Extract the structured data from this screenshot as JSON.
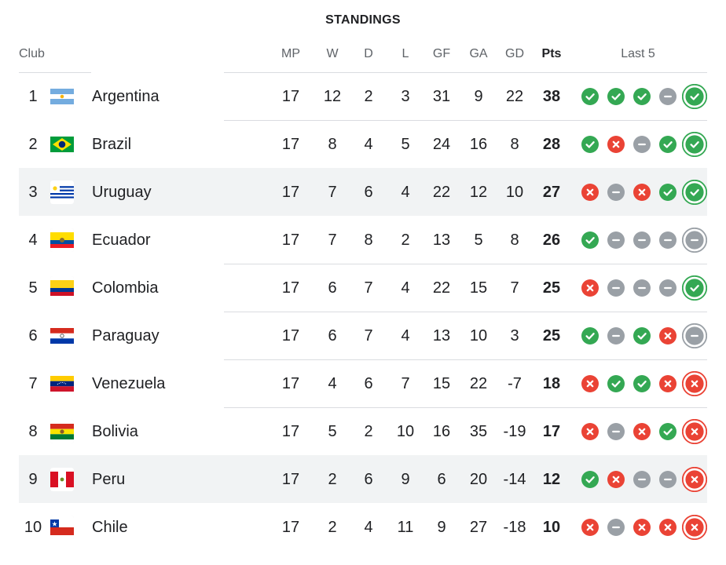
{
  "title": "STANDINGS",
  "columns": {
    "club": "Club",
    "mp": "MP",
    "w": "W",
    "d": "D",
    "l": "L",
    "gf": "GF",
    "ga": "GA",
    "gd": "GD",
    "pts": "Pts",
    "last5": "Last 5"
  },
  "colors": {
    "win": "#34a853",
    "loss": "#ea4335",
    "draw": "#9aa0a6",
    "divider": "#dadce0",
    "highlight_row": "#f1f3f4"
  },
  "rows": [
    {
      "rank": "1",
      "club": "Argentina",
      "flag": "argentina-flag-icon",
      "mp": "17",
      "w": "12",
      "d": "2",
      "l": "3",
      "gf": "31",
      "ga": "9",
      "gd": "22",
      "pts": "38",
      "last5": [
        "W",
        "W",
        "W",
        "D",
        "W"
      ],
      "highlight": false
    },
    {
      "rank": "2",
      "club": "Brazil",
      "flag": "brazil-flag-icon",
      "mp": "17",
      "w": "8",
      "d": "4",
      "l": "5",
      "gf": "24",
      "ga": "16",
      "gd": "8",
      "pts": "28",
      "last5": [
        "W",
        "L",
        "D",
        "W",
        "W"
      ],
      "highlight": false
    },
    {
      "rank": "3",
      "club": "Uruguay",
      "flag": "uruguay-flag-icon",
      "mp": "17",
      "w": "7",
      "d": "6",
      "l": "4",
      "gf": "22",
      "ga": "12",
      "gd": "10",
      "pts": "27",
      "last5": [
        "L",
        "D",
        "L",
        "W",
        "W"
      ],
      "highlight": true
    },
    {
      "rank": "4",
      "club": "Ecuador",
      "flag": "ecuador-flag-icon",
      "mp": "17",
      "w": "7",
      "d": "8",
      "l": "2",
      "gf": "13",
      "ga": "5",
      "gd": "8",
      "pts": "26",
      "last5": [
        "W",
        "D",
        "D",
        "D",
        "D"
      ],
      "highlight": false
    },
    {
      "rank": "5",
      "club": "Colombia",
      "flag": "colombia-flag-icon",
      "mp": "17",
      "w": "6",
      "d": "7",
      "l": "4",
      "gf": "22",
      "ga": "15",
      "gd": "7",
      "pts": "25",
      "last5": [
        "L",
        "D",
        "D",
        "D",
        "W"
      ],
      "highlight": false
    },
    {
      "rank": "6",
      "club": "Paraguay",
      "flag": "paraguay-flag-icon",
      "mp": "17",
      "w": "6",
      "d": "7",
      "l": "4",
      "gf": "13",
      "ga": "10",
      "gd": "3",
      "pts": "25",
      "last5": [
        "W",
        "D",
        "W",
        "L",
        "D"
      ],
      "highlight": false
    },
    {
      "rank": "7",
      "club": "Venezuela",
      "flag": "venezuela-flag-icon",
      "mp": "17",
      "w": "4",
      "d": "6",
      "l": "7",
      "gf": "15",
      "ga": "22",
      "gd": "-7",
      "pts": "18",
      "last5": [
        "L",
        "W",
        "W",
        "L",
        "L"
      ],
      "highlight": false
    },
    {
      "rank": "8",
      "club": "Bolivia",
      "flag": "bolivia-flag-icon",
      "mp": "17",
      "w": "5",
      "d": "2",
      "l": "10",
      "gf": "16",
      "ga": "35",
      "gd": "-19",
      "pts": "17",
      "last5": [
        "L",
        "D",
        "L",
        "W",
        "L"
      ],
      "highlight": false
    },
    {
      "rank": "9",
      "club": "Peru",
      "flag": "peru-flag-icon",
      "mp": "17",
      "w": "2",
      "d": "6",
      "l": "9",
      "gf": "6",
      "ga": "20",
      "gd": "-14",
      "pts": "12",
      "last5": [
        "W",
        "L",
        "D",
        "D",
        "L"
      ],
      "highlight": true
    },
    {
      "rank": "10",
      "club": "Chile",
      "flag": "chile-flag-icon",
      "mp": "17",
      "w": "2",
      "d": "4",
      "l": "11",
      "gf": "9",
      "ga": "27",
      "gd": "-18",
      "pts": "10",
      "last5": [
        "L",
        "D",
        "L",
        "L",
        "L"
      ],
      "highlight": false
    }
  ]
}
